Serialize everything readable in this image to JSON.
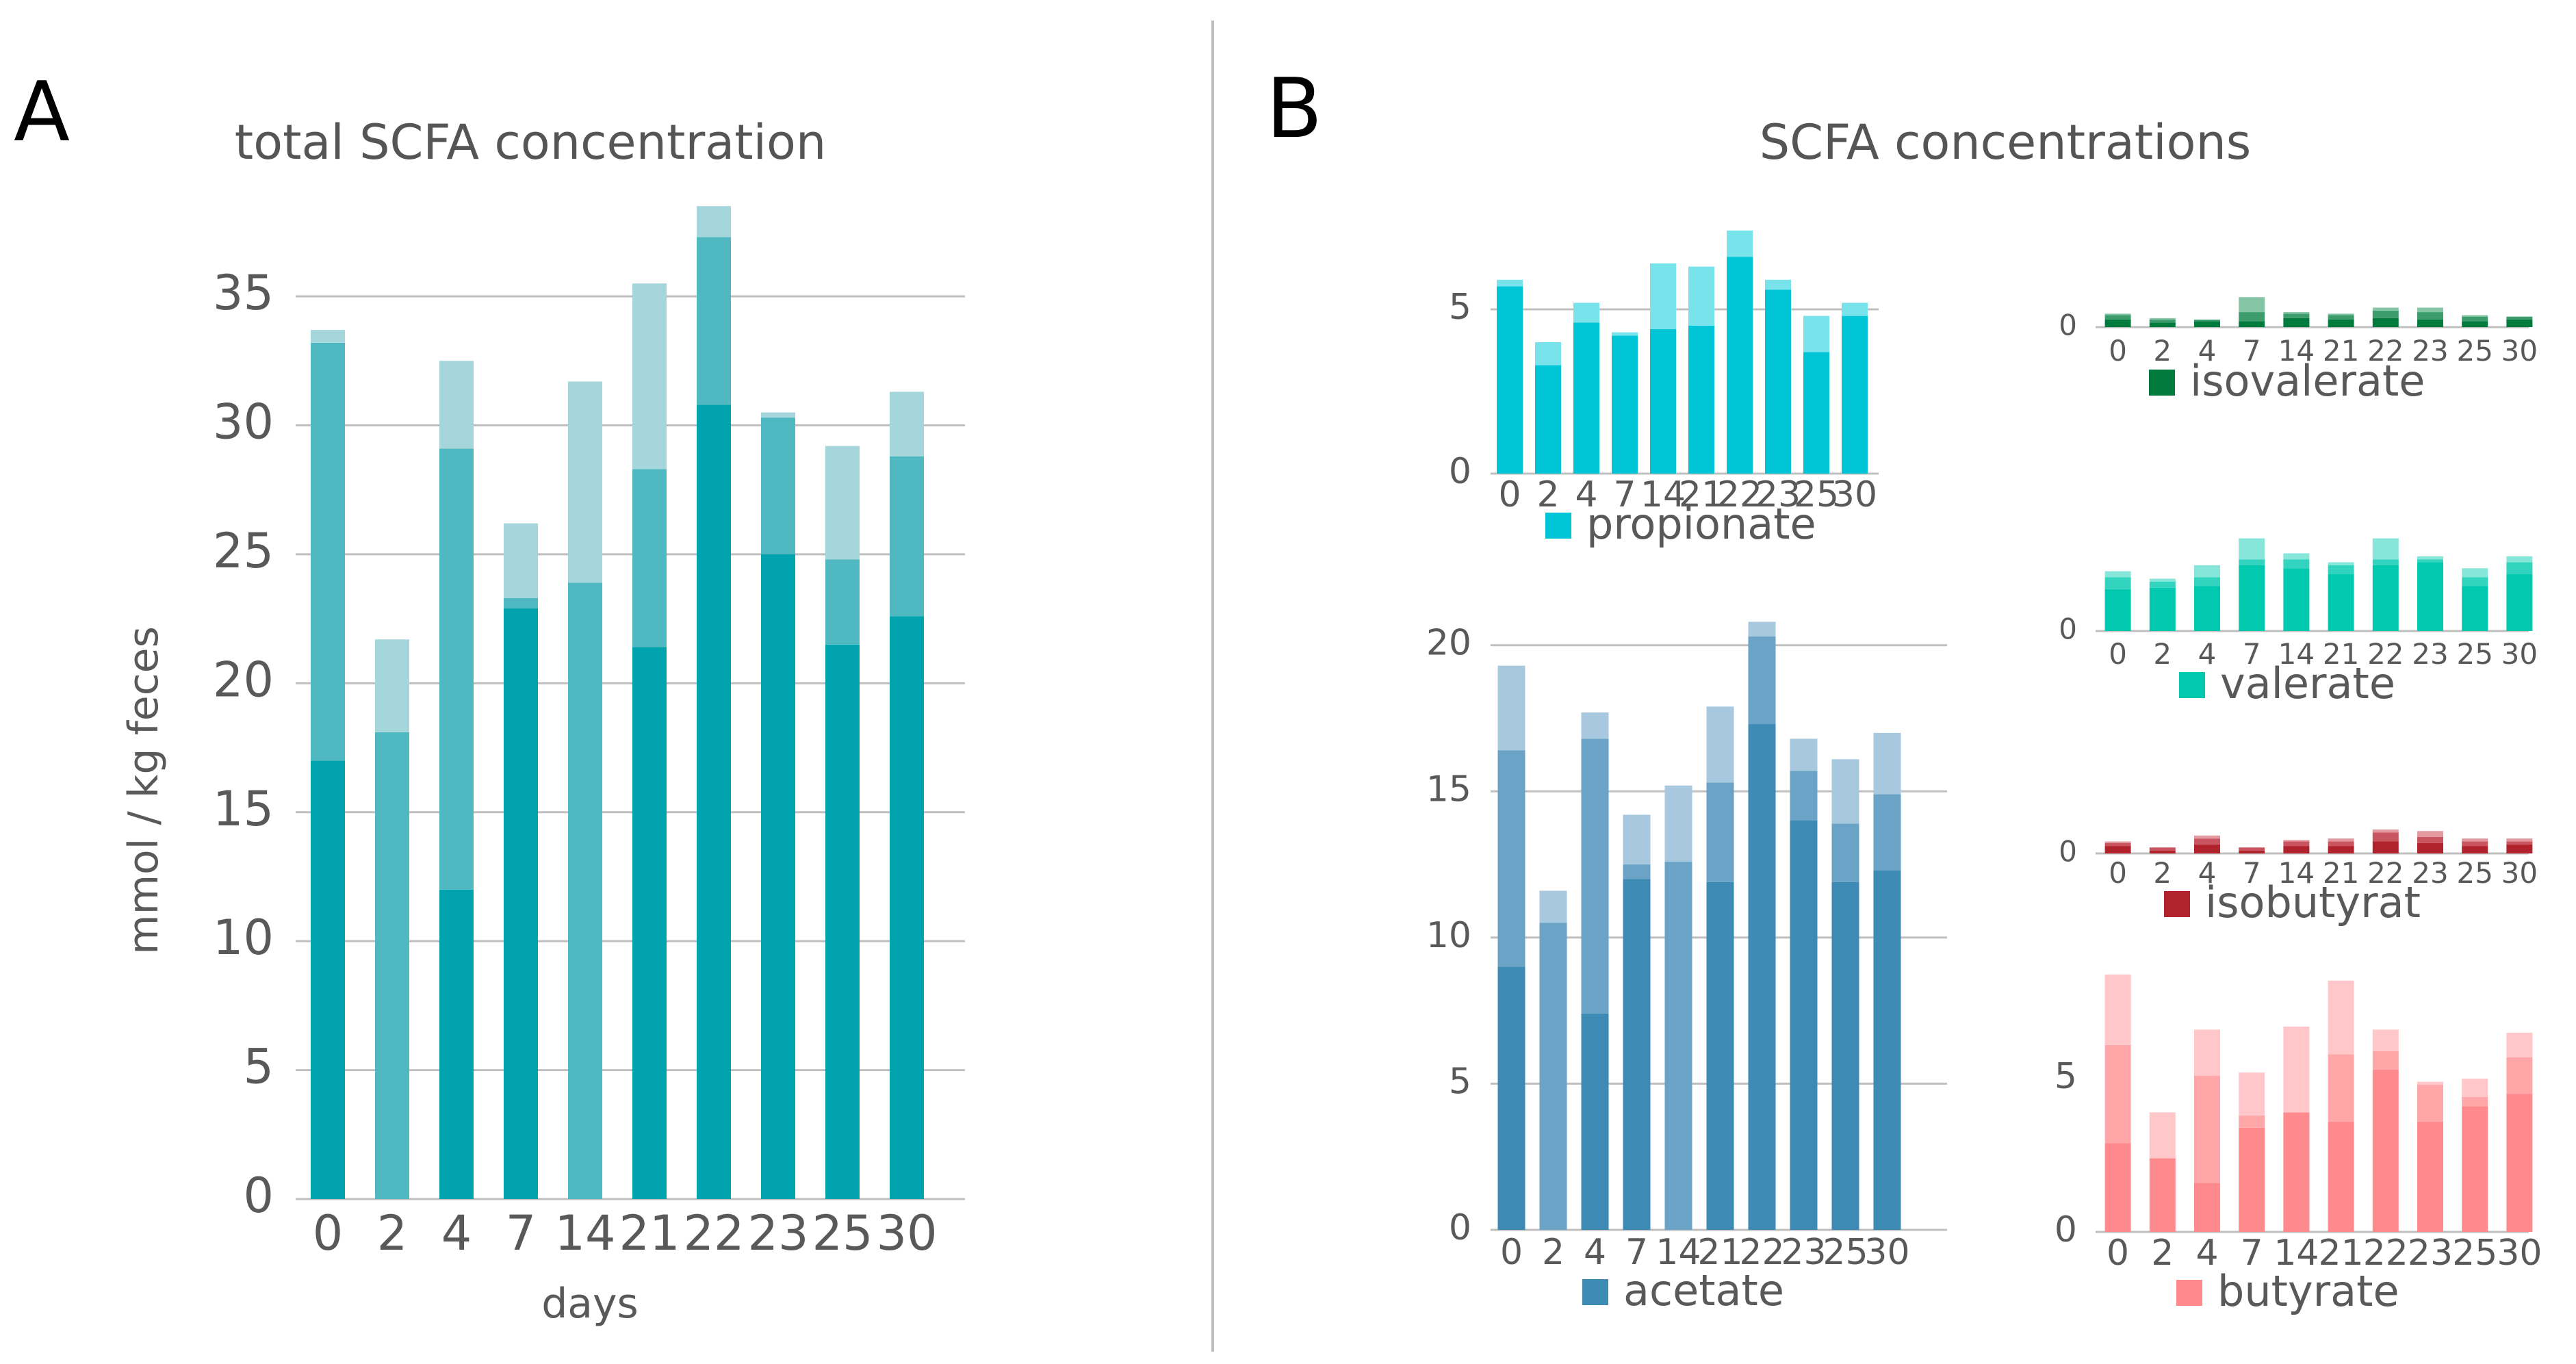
{
  "panels": {
    "a": {
      "letter": "A",
      "title": "total SCFA concentration",
      "xlabel": "days",
      "ylabel": "mmol / kg feces"
    },
    "b": {
      "letter": "B",
      "title": "SCFA concentrations"
    }
  },
  "colors": {
    "total": [
      "#00A3AE",
      "#4FB8C1",
      "#A4D6DB"
    ],
    "propionate": [
      "#00C5D6",
      "#2CCFDE",
      "#79E3EC"
    ],
    "acetate": [
      "#3D8AB5",
      "#6AA3C6",
      "#A7C8DE"
    ],
    "isovalerate": [
      "#007A3D",
      "#3C9C6C",
      "#85C4A4"
    ],
    "valerate": [
      "#00C9B0",
      "#33D4BF",
      "#85E6D9"
    ],
    "isobutyrat": [
      "#B0232D",
      "#C95560",
      "#E29AA0"
    ],
    "butyrate": [
      "#FF8A8E",
      "#FFA6A9",
      "#FFC7C9"
    ],
    "grid": "#BFBFBF",
    "divider": "#BFBFBF"
  },
  "chart_data": [
    {
      "id": "total",
      "type": "bar",
      "stacked": true,
      "title": "total SCFA concentration",
      "xlabel": "days",
      "ylabel": "mmol / kg feces",
      "categories": [
        "0",
        "2",
        "4",
        "7",
        "14",
        "21",
        "22",
        "23",
        "25",
        "30"
      ],
      "ylim": [
        0,
        38
      ],
      "yticks": [
        0,
        5,
        10,
        15,
        20,
        25,
        30,
        35
      ],
      "grid": true,
      "series": [
        {
          "values": [
            17.0,
            0,
            12.0,
            22.9,
            0,
            21.4,
            30.8,
            25.0,
            21.5,
            22.6
          ]
        },
        {
          "values": [
            16.2,
            18.1,
            17.1,
            0.4,
            23.9,
            6.9,
            6.5,
            5.3,
            3.3,
            6.2
          ]
        },
        {
          "values": [
            0.5,
            3.6,
            3.4,
            2.9,
            7.8,
            7.2,
            1.2,
            0.2,
            4.4,
            2.5
          ]
        }
      ]
    },
    {
      "id": "propionate",
      "type": "bar",
      "stacked": true,
      "legend": "propionate",
      "categories": [
        "0",
        "2",
        "4",
        "7",
        "14",
        "21",
        "22",
        "23",
        "25",
        "30"
      ],
      "ylim": [
        0,
        7.5
      ],
      "yticks": [
        0,
        5
      ],
      "grid": true,
      "series": [
        {
          "values": [
            5.7,
            3.3,
            4.6,
            4.2,
            4.4,
            4.5,
            6.6,
            5.6,
            3.7,
            4.8
          ]
        },
        {
          "values": [
            0,
            0,
            0,
            0,
            0,
            0,
            0,
            0,
            0,
            0
          ]
        },
        {
          "values": [
            0.2,
            0.7,
            0.6,
            0.1,
            2.0,
            1.8,
            0.8,
            0.3,
            1.1,
            0.4
          ]
        }
      ]
    },
    {
      "id": "acetate",
      "type": "bar",
      "stacked": true,
      "legend": "acetate",
      "categories": [
        "0",
        "2",
        "4",
        "7",
        "14",
        "21",
        "22",
        "23",
        "25",
        "30"
      ],
      "ylim": [
        0,
        21
      ],
      "yticks": [
        0,
        5,
        10,
        15,
        20
      ],
      "grid": true,
      "series": [
        {
          "values": [
            9.0,
            0,
            7.4,
            12.0,
            0,
            11.9,
            17.3,
            14.0,
            11.9,
            12.3
          ]
        },
        {
          "values": [
            7.4,
            10.5,
            9.4,
            0.5,
            12.6,
            3.4,
            3.0,
            1.7,
            2.0,
            2.6
          ]
        },
        {
          "values": [
            2.9,
            1.1,
            0.9,
            1.7,
            2.6,
            2.6,
            0.5,
            1.1,
            2.2,
            2.1
          ]
        }
      ]
    },
    {
      "id": "isovalerate",
      "type": "bar",
      "stacked": true,
      "legend": "isovalerate",
      "categories": [
        "0",
        "2",
        "4",
        "7",
        "14",
        "21",
        "22",
        "23",
        "25",
        "30"
      ],
      "ylim": [
        0,
        6
      ],
      "yticks": [
        0
      ],
      "grid": false,
      "series": [
        {
          "values": [
            0.25,
            0.15,
            0.2,
            0.2,
            0.3,
            0.25,
            0.3,
            0.25,
            0.2,
            0.25
          ]
        },
        {
          "values": [
            0.15,
            0.1,
            0.05,
            0.3,
            0.15,
            0.15,
            0.25,
            0.25,
            0.15,
            0.1
          ]
        },
        {
          "values": [
            0.05,
            0.05,
            0.0,
            0.5,
            0.05,
            0.05,
            0.1,
            0.15,
            0.05,
            0.0
          ]
        }
      ]
    },
    {
      "id": "valerate",
      "type": "bar",
      "stacked": true,
      "legend": "valerate",
      "categories": [
        "0",
        "2",
        "4",
        "7",
        "14",
        "21",
        "22",
        "23",
        "25",
        "30"
      ],
      "ylim": [
        0,
        6
      ],
      "yticks": [
        0
      ],
      "grid": false,
      "series": [
        {
          "values": [
            1.4,
            1.45,
            1.5,
            2.2,
            2.1,
            1.9,
            2.2,
            2.3,
            1.5,
            1.9
          ]
        },
        {
          "values": [
            0.4,
            0.2,
            0.3,
            0.2,
            0.3,
            0.3,
            0.2,
            0.1,
            0.3,
            0.4
          ]
        },
        {
          "values": [
            0.2,
            0.1,
            0.4,
            0.7,
            0.2,
            0.1,
            0.7,
            0.1,
            0.3,
            0.2
          ]
        }
      ]
    },
    {
      "id": "isobutyrat",
      "type": "bar",
      "stacked": true,
      "legend": "isobutyrat",
      "categories": [
        "0",
        "2",
        "4",
        "7",
        "14",
        "21",
        "22",
        "23",
        "25",
        "30"
      ],
      "ylim": [
        0,
        6
      ],
      "yticks": [
        0
      ],
      "grid": false,
      "series": [
        {
          "values": [
            0.25,
            0.1,
            0.3,
            0.1,
            0.25,
            0.25,
            0.4,
            0.35,
            0.25,
            0.3
          ]
        },
        {
          "values": [
            0.1,
            0.1,
            0.2,
            0.1,
            0.15,
            0.15,
            0.3,
            0.2,
            0.15,
            0.1
          ]
        },
        {
          "values": [
            0.05,
            0.0,
            0.1,
            0.0,
            0.05,
            0.1,
            0.1,
            0.2,
            0.1,
            0.1
          ]
        }
      ]
    },
    {
      "id": "butyrate",
      "type": "bar",
      "stacked": true,
      "legend": "butyrate",
      "categories": [
        "0",
        "2",
        "4",
        "7",
        "14",
        "21",
        "22",
        "23",
        "25",
        "30"
      ],
      "ylim": [
        0,
        9
      ],
      "yticks": [
        0,
        5
      ],
      "grid": false,
      "series": [
        {
          "values": [
            2.9,
            2.4,
            1.6,
            3.4,
            3.9,
            3.6,
            5.3,
            3.6,
            4.1,
            4.5
          ]
        },
        {
          "values": [
            3.2,
            0,
            3.5,
            0.4,
            0,
            2.2,
            0.6,
            1.2,
            0.3,
            1.2
          ]
        },
        {
          "values": [
            2.3,
            1.5,
            1.5,
            1.4,
            2.8,
            2.4,
            0.7,
            0.1,
            0.6,
            0.8
          ]
        }
      ]
    }
  ]
}
